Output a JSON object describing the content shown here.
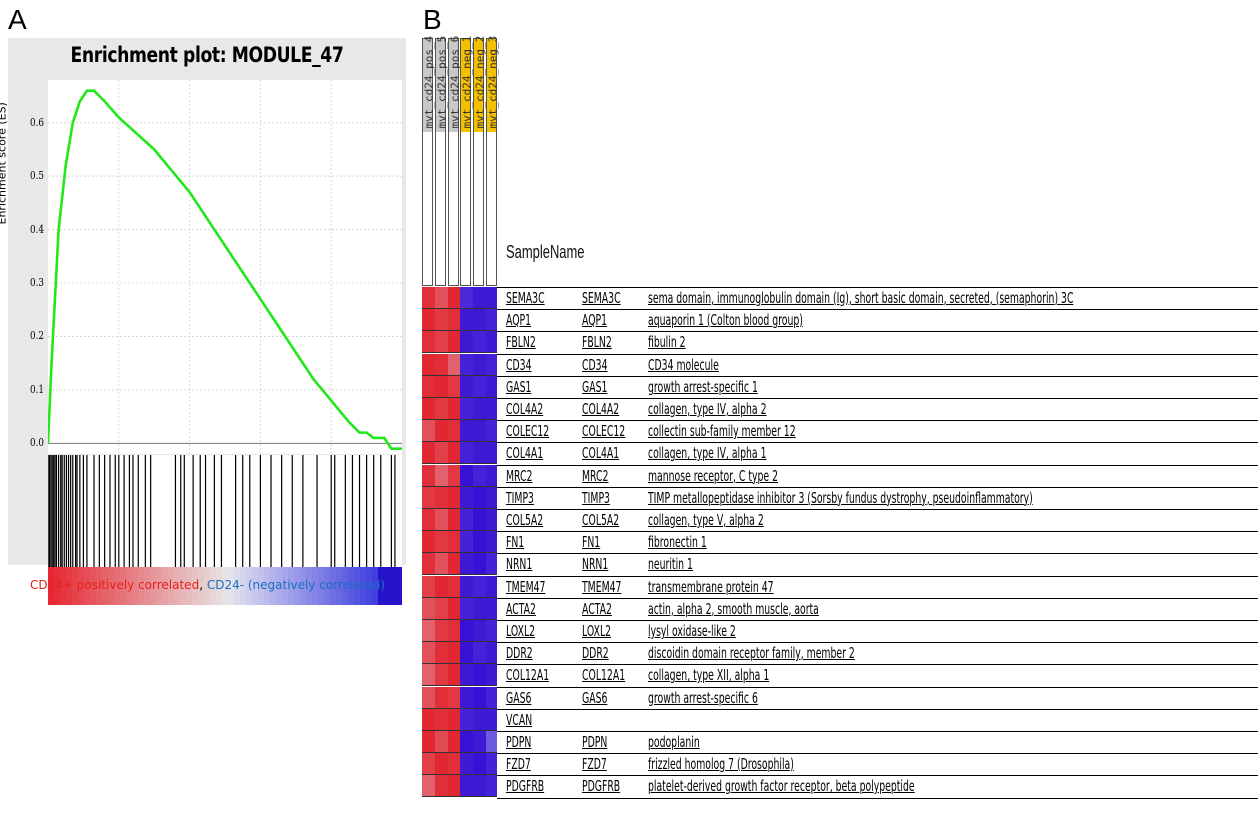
{
  "panels": {
    "a": "A",
    "b": "B"
  },
  "gsea": {
    "title": "Enrichment plot: MODULE_47",
    "ylabel": "Enrichment score (ES)",
    "caption_pos": "CD24+ positively correlated",
    "caption_sep": ", ",
    "caption_neg": "CD24- (negatively correlated)",
    "line_color": "#22e81a"
  },
  "chart_data": [
    {
      "type": "line",
      "title": "Enrichment plot: MODULE_47",
      "xlabel": "",
      "ylabel": "Enrichment score (ES)",
      "y_ticks": [
        "0.0",
        "0.1",
        "0.2",
        "0.3",
        "0.4",
        "0.5",
        "0.6"
      ],
      "ylim": [
        -0.02,
        0.68
      ],
      "xlim": [
        0,
        1
      ],
      "grid": true,
      "x": [
        0,
        0.01,
        0.03,
        0.05,
        0.07,
        0.09,
        0.11,
        0.13,
        0.16,
        0.2,
        0.25,
        0.3,
        0.35,
        0.4,
        0.45,
        0.5,
        0.55,
        0.6,
        0.65,
        0.7,
        0.75,
        0.8,
        0.85,
        0.88,
        0.9,
        0.92,
        0.95,
        0.97,
        1.0
      ],
      "y": [
        0.0,
        0.15,
        0.4,
        0.52,
        0.6,
        0.64,
        0.66,
        0.66,
        0.64,
        0.61,
        0.58,
        0.55,
        0.51,
        0.47,
        0.42,
        0.37,
        0.32,
        0.27,
        0.22,
        0.17,
        0.12,
        0.08,
        0.04,
        0.02,
        0.02,
        0.01,
        0.01,
        -0.01,
        -0.01
      ],
      "series": [
        {
          "values": [
            0.0,
            0.15,
            0.4,
            0.52,
            0.6,
            0.64,
            0.66,
            0.66,
            0.64,
            0.61,
            0.58,
            0.55,
            0.51,
            0.47,
            0.42,
            0.37,
            0.32,
            0.27,
            0.22,
            0.17,
            0.12,
            0.08,
            0.04,
            0.02,
            0.02,
            0.01,
            0.01,
            -0.01,
            -0.01
          ]
        }
      ],
      "hits": [
        0.0,
        0.004,
        0.008,
        0.012,
        0.016,
        0.02,
        0.024,
        0.03,
        0.036,
        0.04,
        0.046,
        0.052,
        0.058,
        0.064,
        0.07,
        0.078,
        0.082,
        0.09,
        0.1,
        0.11,
        0.13,
        0.145,
        0.16,
        0.175,
        0.19,
        0.2,
        0.215,
        0.23,
        0.24,
        0.255,
        0.275,
        0.29,
        0.36,
        0.375,
        0.385,
        0.41,
        0.43,
        0.445,
        0.47,
        0.49,
        0.53,
        0.55,
        0.57,
        0.6,
        0.63,
        0.66,
        0.69,
        0.72,
        0.76,
        0.8,
        0.81,
        0.84,
        0.86,
        0.88,
        0.9,
        0.92,
        0.94,
        0.97,
        0.98
      ]
    },
    {
      "type": "heatmap",
      "columns": [
        "mvt_cd24_pos_4",
        "mvt_cd24_pos_5",
        "mvt_cd24_pos_6",
        "mvt_cd24_neg_1",
        "mvt_cd24_neg_2",
        "mvt_cd24_neg_3"
      ],
      "column_groups": [
        {
          "name": "pos",
          "color": "#c8c8c8"
        },
        {
          "name": "neg",
          "color": "#f5c000"
        }
      ],
      "row_header": "SampleName",
      "rows": [
        {
          "symbol": "SEMA3C",
          "gene": "SEMA3C",
          "description": "sema domain, immunoglobulin domain (Ig), short basic domain, secreted, (semaphorin) 3C",
          "values": [
            0.9,
            0.7,
            0.95,
            -0.8,
            -0.9,
            -0.9
          ]
        },
        {
          "symbol": "AQP1",
          "gene": "AQP1",
          "description": "aquaporin 1 (Colton blood group)",
          "values": [
            0.95,
            0.85,
            0.9,
            -0.9,
            -0.9,
            -0.85
          ]
        },
        {
          "symbol": "FBLN2",
          "gene": "FBLN2",
          "description": "fibulin 2",
          "values": [
            0.9,
            0.8,
            0.95,
            -0.9,
            -0.85,
            -0.9
          ]
        },
        {
          "symbol": "CD34",
          "gene": "CD34",
          "description": "CD34 molecule",
          "values": [
            0.95,
            0.9,
            0.6,
            -0.85,
            -0.9,
            -0.85
          ]
        },
        {
          "symbol": "GAS1",
          "gene": "GAS1",
          "description": "growth arrest-specific 1",
          "values": [
            0.9,
            0.95,
            0.85,
            -0.9,
            -0.85,
            -0.9
          ]
        },
        {
          "symbol": "COL4A2",
          "gene": "COL4A2",
          "description": "collagen, type IV, alpha 2",
          "values": [
            0.95,
            0.85,
            0.95,
            -0.85,
            -0.9,
            -0.9
          ]
        },
        {
          "symbol": "COLEC12",
          "gene": "COLEC12",
          "description": "collectin sub-family member 12",
          "values": [
            0.7,
            0.95,
            0.9,
            -0.9,
            -0.9,
            -0.85
          ]
        },
        {
          "symbol": "COL4A1",
          "gene": "COL4A1",
          "description": "collagen, type IV, alpha 1",
          "values": [
            0.95,
            0.8,
            0.95,
            -0.85,
            -0.9,
            -0.9
          ]
        },
        {
          "symbol": "MRC2",
          "gene": "MRC2",
          "description": "mannose receptor, C type 2",
          "values": [
            0.9,
            0.6,
            0.85,
            -0.95,
            -0.85,
            -0.9
          ]
        },
        {
          "symbol": "TIMP3",
          "gene": "TIMP3",
          "description": "TIMP metallopeptidase inhibitor 3 (Sorsby fundus dystrophy, pseudoinflammatory)",
          "values": [
            0.85,
            0.9,
            0.95,
            -0.9,
            -0.95,
            -0.9
          ]
        },
        {
          "symbol": "COL5A2",
          "gene": "COL5A2",
          "description": "collagen, type V, alpha 2",
          "values": [
            0.9,
            0.7,
            0.95,
            -0.85,
            -0.95,
            -0.9
          ]
        },
        {
          "symbol": "FN1",
          "gene": "FN1",
          "description": "fibronectin 1",
          "values": [
            0.95,
            0.85,
            0.9,
            -0.85,
            -0.95,
            -0.9
          ]
        },
        {
          "symbol": "NRN1",
          "gene": "NRN1",
          "description": "neuritin 1",
          "values": [
            0.9,
            0.7,
            0.95,
            -0.9,
            -0.95,
            -0.85
          ]
        },
        {
          "symbol": "TMEM47",
          "gene": "TMEM47",
          "description": "transmembrane protein 47",
          "values": [
            0.8,
            0.95,
            0.9,
            -0.9,
            -0.85,
            -0.9
          ]
        },
        {
          "symbol": "ACTA2",
          "gene": "ACTA2",
          "description": "actin, alpha 2, smooth muscle, aorta",
          "values": [
            0.7,
            0.8,
            0.95,
            -0.85,
            -0.9,
            -0.9
          ]
        },
        {
          "symbol": "LOXL2",
          "gene": "LOXL2",
          "description": "lysyl oxidase-like 2",
          "values": [
            0.6,
            0.85,
            0.9,
            -0.95,
            -0.9,
            -0.85
          ]
        },
        {
          "symbol": "DDR2",
          "gene": "DDR2",
          "description": "discoidin domain receptor family, member 2",
          "values": [
            0.7,
            0.9,
            0.95,
            -0.95,
            -0.85,
            -0.9
          ]
        },
        {
          "symbol": "COL12A1",
          "gene": "COL12A1",
          "description": "collagen, type XII, alpha 1",
          "values": [
            0.6,
            0.85,
            0.95,
            -0.9,
            -0.95,
            -0.9
          ]
        },
        {
          "symbol": "GAS6",
          "gene": "GAS6",
          "description": "growth arrest-specific 6",
          "values": [
            0.7,
            0.9,
            0.85,
            -0.9,
            -0.95,
            -0.85
          ]
        },
        {
          "symbol": "VCAN",
          "gene": "",
          "description": "",
          "values": [
            0.95,
            0.9,
            0.95,
            -0.85,
            -0.9,
            -0.9
          ]
        },
        {
          "symbol": "PDPN",
          "gene": "PDPN",
          "description": "podoplanin",
          "values": [
            0.95,
            0.75,
            0.95,
            -0.95,
            -0.9,
            -0.5
          ]
        },
        {
          "symbol": "FZD7",
          "gene": "FZD7",
          "description": "frizzled homolog 7 (Drosophila)",
          "values": [
            0.8,
            0.95,
            0.9,
            -0.9,
            -0.95,
            -0.85
          ]
        },
        {
          "symbol": "PDGFRB",
          "gene": "PDGFRB",
          "description": "platelet-derived growth factor receptor, beta polypeptide",
          "values": [
            0.6,
            0.9,
            0.95,
            -0.9,
            -0.9,
            -0.85
          ]
        }
      ]
    }
  ]
}
